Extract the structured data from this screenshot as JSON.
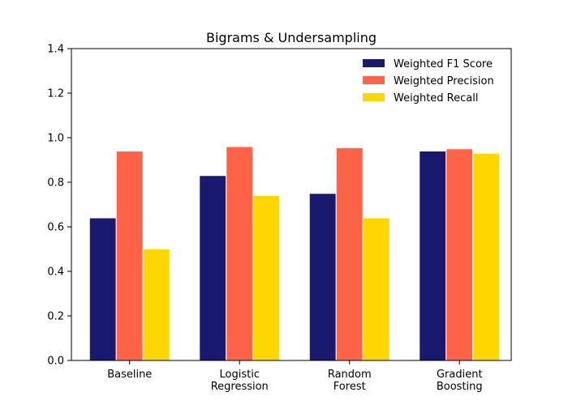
{
  "chart_data": {
    "type": "bar",
    "title": "Bigrams & Undersampling",
    "xlabel": "",
    "ylabel": "",
    "categories": [
      "Baseline",
      "Logistic\nRegression",
      "Random\nForest",
      "Gradient\nBoosting"
    ],
    "ylim": [
      0,
      1.4
    ],
    "yticks": [
      0.0,
      0.2,
      0.4,
      0.6,
      0.8,
      1.0,
      1.2,
      1.4
    ],
    "ytick_labels": [
      "0.0",
      "0.2",
      "0.4",
      "0.6",
      "0.8",
      "1.0",
      "1.2",
      "1.4"
    ],
    "grid": false,
    "legend_position": "top-right",
    "series": [
      {
        "name": "Weighted F1 Score",
        "color": "#191970",
        "values": [
          0.64,
          0.83,
          0.75,
          0.94
        ]
      },
      {
        "name": "Weighted Precision",
        "color": "#ff6347",
        "values": [
          0.94,
          0.96,
          0.955,
          0.95
        ]
      },
      {
        "name": "Weighted Recall",
        "color": "#ffd700",
        "values": [
          0.5,
          0.74,
          0.64,
          0.93
        ]
      }
    ]
  }
}
